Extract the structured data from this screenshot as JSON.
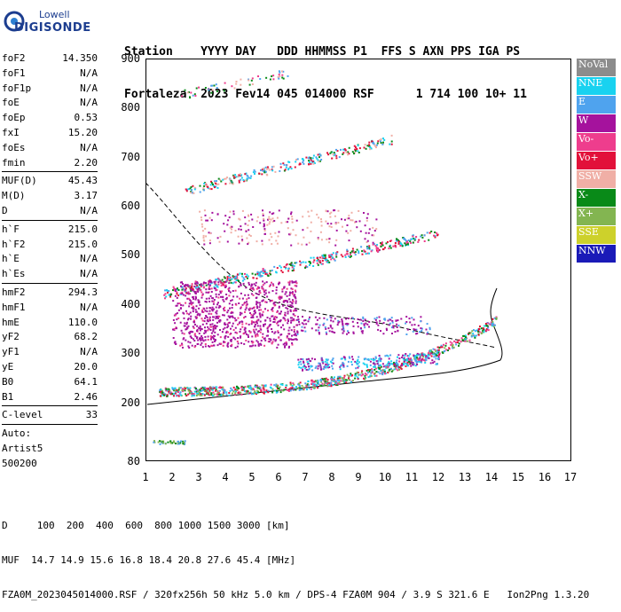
{
  "logo": {
    "line1": "Lowell",
    "line2": "DIGISONDE"
  },
  "header": {
    "line1": "Station    YYYY DAY   DDD HHMMSS P1  FFS S AXN PPS IGA PS",
    "line2": "Fortaleza  2023 Fev14 045 014000 RSF      1 714 100 10+ 11"
  },
  "params_group1": [
    {
      "name": "foF2",
      "value": "14.350"
    },
    {
      "name": "foF1",
      "value": "N/A"
    },
    {
      "name": "foF1p",
      "value": "N/A"
    },
    {
      "name": "foE",
      "value": "N/A"
    },
    {
      "name": "foEp",
      "value": "0.53"
    },
    {
      "name": "fxI",
      "value": "15.20"
    },
    {
      "name": "foEs",
      "value": "N/A"
    },
    {
      "name": "fmin",
      "value": "2.20"
    }
  ],
  "params_group2": [
    {
      "name": "MUF(D)",
      "value": "45.43"
    },
    {
      "name": "M(D)",
      "value": "3.17"
    },
    {
      "name": "D",
      "value": "N/A"
    }
  ],
  "params_group3": [
    {
      "name": "h`F",
      "value": "215.0"
    },
    {
      "name": "h`F2",
      "value": "215.0"
    },
    {
      "name": "h`E",
      "value": "N/A"
    },
    {
      "name": "h`Es",
      "value": "N/A"
    }
  ],
  "params_group4": [
    {
      "name": "hmF2",
      "value": "294.3"
    },
    {
      "name": "hmF1",
      "value": "N/A"
    },
    {
      "name": "hmE",
      "value": "110.0"
    },
    {
      "name": "yF2",
      "value": "68.2"
    },
    {
      "name": "yF1",
      "value": "N/A"
    },
    {
      "name": "yE",
      "value": "20.0"
    },
    {
      "name": "B0",
      "value": "64.1"
    },
    {
      "name": "B1",
      "value": "2.46"
    }
  ],
  "params_group5": [
    {
      "name": "C-level",
      "value": "33"
    }
  ],
  "autoscale": {
    "line1": "Auto:",
    "line2": "Artist5",
    "line3": "500200"
  },
  "axes": {
    "y_ticks": [
      "900",
      "800",
      "700",
      "600",
      "500",
      "400",
      "300",
      "200",
      "80"
    ],
    "x_ticks": [
      "1",
      "2",
      "3",
      "4",
      "5",
      "6",
      "7",
      "8",
      "9",
      "10",
      "11",
      "12",
      "13",
      "14",
      "15",
      "16",
      "17"
    ]
  },
  "legend": [
    {
      "label": "NoVal",
      "color": "#8c8c8c"
    },
    {
      "label": "NNE",
      "color": "#19d2f0"
    },
    {
      "label": "E",
      "color": "#4fa3ee"
    },
    {
      "label": "W",
      "color": "#a5129d"
    },
    {
      "label": "Vo-",
      "color": "#ee3d8d"
    },
    {
      "label": "Vo+",
      "color": "#e2113a"
    },
    {
      "label": "SSW",
      "color": "#f0afa6"
    },
    {
      "label": "X-",
      "color": "#098a18"
    },
    {
      "label": "X+",
      "color": "#83b551"
    },
    {
      "label": "SSE",
      "color": "#cdd12b"
    },
    {
      "label": "NNW",
      "color": "#1a1ab8"
    }
  ],
  "footer": {
    "line1": "D     100  200  400  600  800 1000 1500 3000 [km]",
    "line2": "MUF  14.7 14.9 15.6 16.8 18.4 20.8 27.6 45.4 [MHz]",
    "line3": "FZA0M_2023045014000.RSF / 320fx256h 50 kHz 5.0 km / DPS-4 FZA0M 904 / 3.9 S 321.6 E   Ion2Png 1.3.20"
  }
}
